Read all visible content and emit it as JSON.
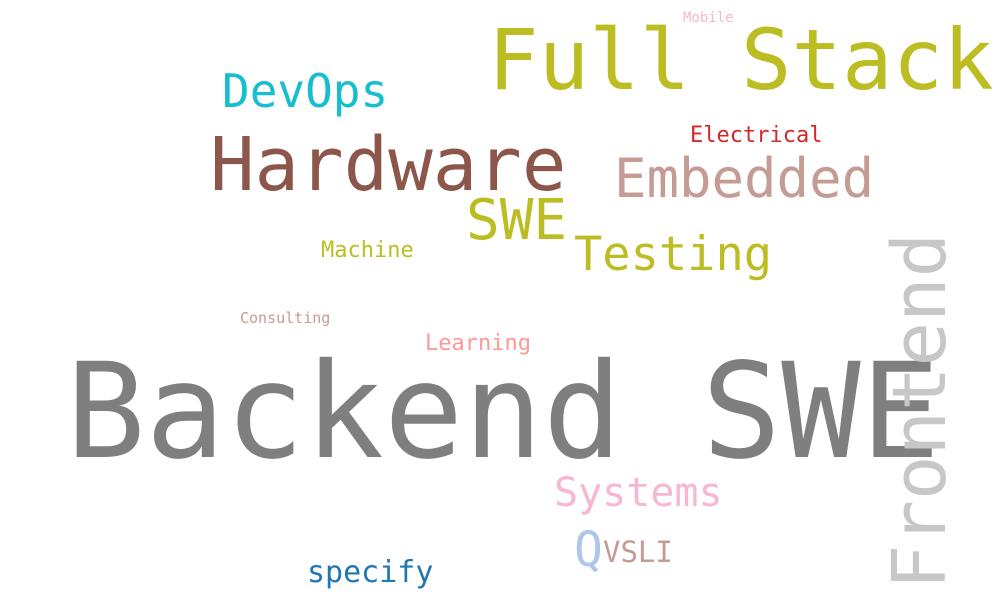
{
  "words": {
    "backend_swe": {
      "text": "Backend SWE",
      "color": "#7f7f7f"
    },
    "full_stack": {
      "text": "Full Stack",
      "color": "#bcbd22"
    },
    "hardware": {
      "text": "Hardware",
      "color": "#8c564b"
    },
    "embedded": {
      "text": "Embedded",
      "color": "#c49c94"
    },
    "swe": {
      "text": "SWE",
      "color": "#bcbd22"
    },
    "testing": {
      "text": "Testing",
      "color": "#bcbd22"
    },
    "devops": {
      "text": "DevOps",
      "color": "#17becf"
    },
    "frontend": {
      "text": "Frontend",
      "color": "#c7c7c7"
    },
    "systems": {
      "text": "Systems",
      "color": "#f7b6d2"
    },
    "q": {
      "text": "Q",
      "color": "#aec7e8"
    },
    "vsli": {
      "text": "VSLI",
      "color": "#c49c94"
    },
    "specify": {
      "text": "specify",
      "color": "#1f77b4"
    },
    "machine": {
      "text": "Machine",
      "color": "#bcbd22"
    },
    "learning": {
      "text": "Learning",
      "color": "#ff9896"
    },
    "electrical": {
      "text": "Electrical",
      "color": "#d62728"
    },
    "consulting": {
      "text": "Consulting",
      "color": "#c49c94"
    },
    "mobile": {
      "text": "Mobile",
      "color": "#f7b6d2"
    }
  }
}
